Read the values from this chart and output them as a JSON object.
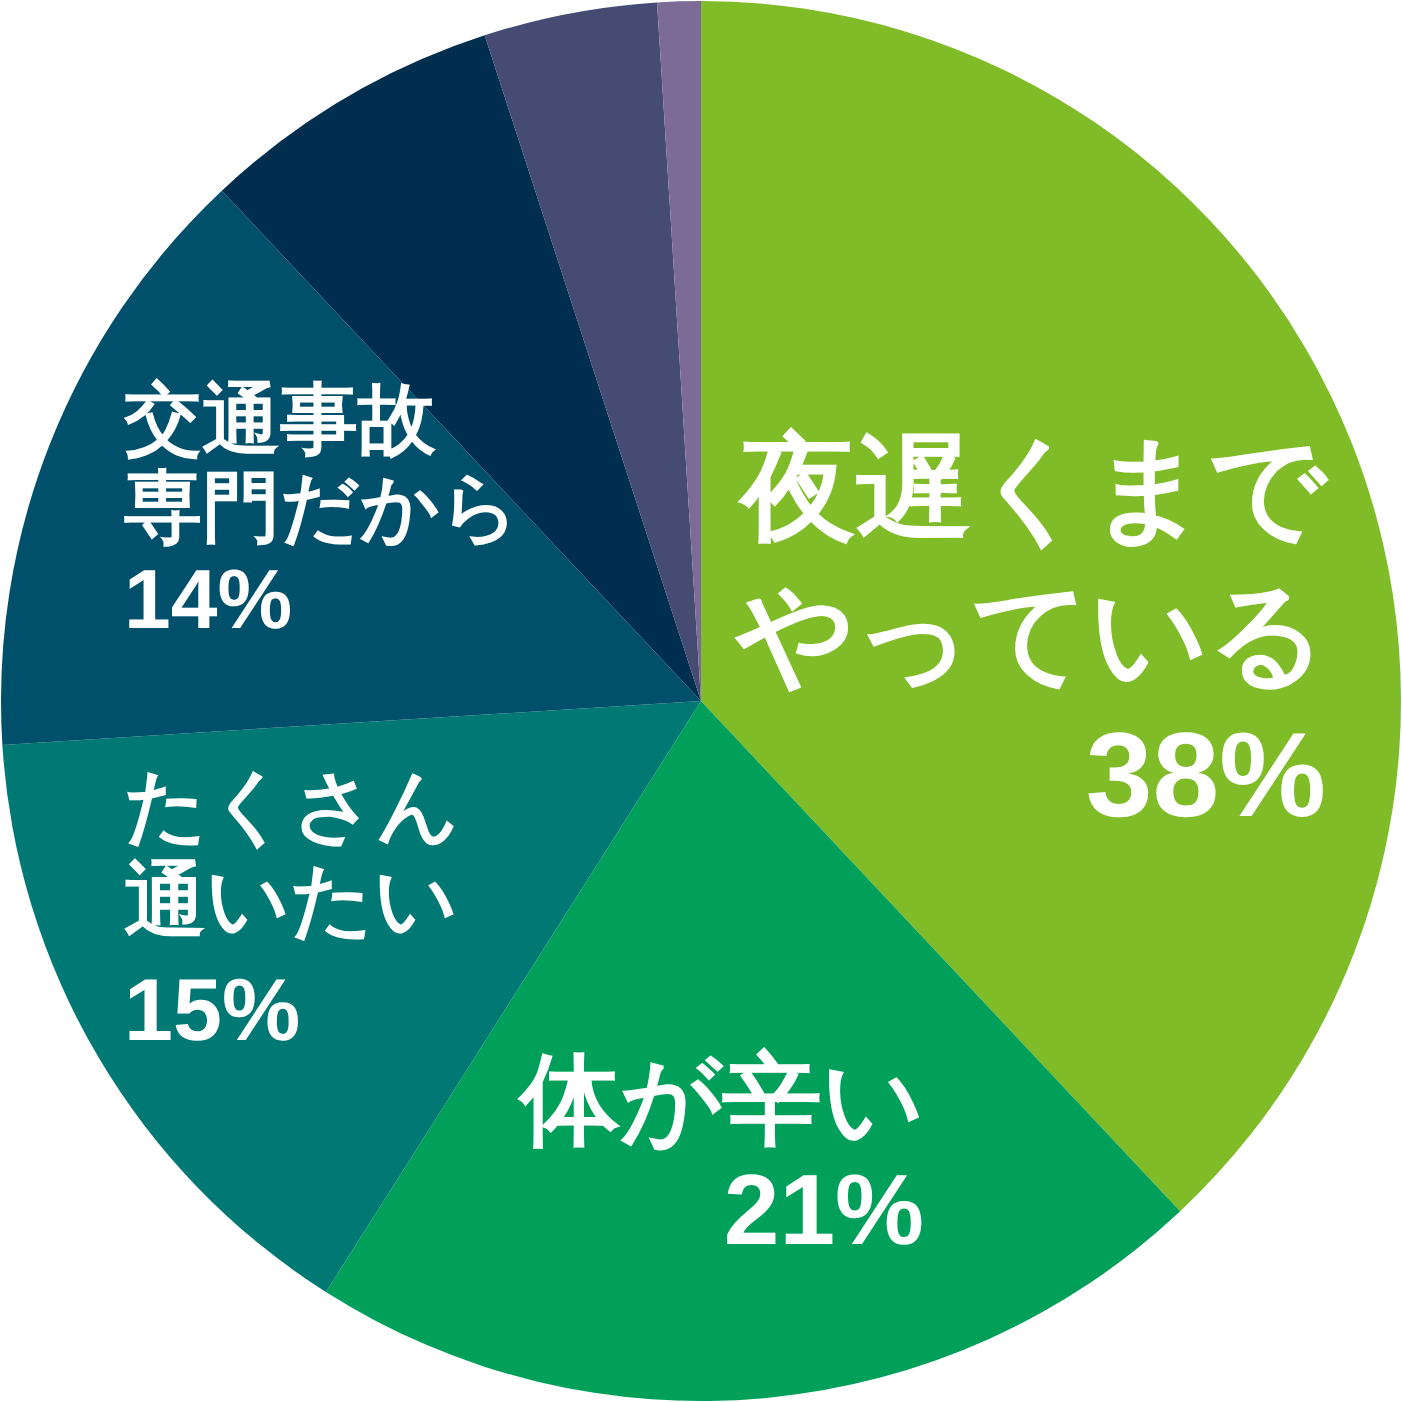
{
  "chart_data": {
    "type": "pie",
    "categories": [
      "夜遅くまでやっている",
      "体が辛い",
      "たくさん通いたい",
      "交通事故専門だから",
      null,
      null,
      null
    ],
    "values": [
      38,
      21,
      15,
      14,
      7,
      4,
      1
    ],
    "value_labels": [
      "38%",
      "21%",
      "15%",
      "14%",
      null,
      null,
      null
    ],
    "colors": [
      "#80bc28",
      "#00a05a",
      "#007873",
      "#00506c",
      "#002e4f",
      "#454b72",
      "#7c6b97"
    ]
  }
}
